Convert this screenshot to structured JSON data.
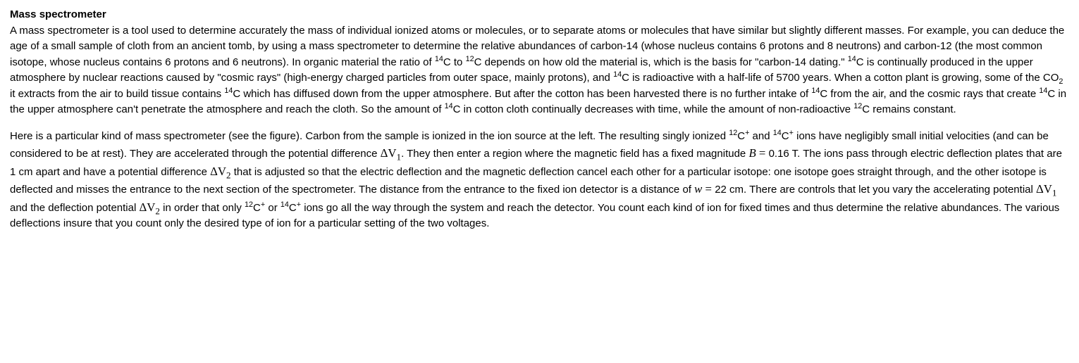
{
  "title": "Mass spectrometer",
  "p1_a": "A mass spectrometer is a tool used to determine accurately the mass of individual ionized atoms or molecules, or to separate atoms or molecules that have similar but slightly different masses. For example, you can deduce the age of a small sample of cloth from an ancient tomb, by using a mass spectrometer to determine the relative abundances of carbon-14 (whose nucleus contains 6 protons and 8 neutrons) and carbon-12 (the most common isotope, whose nucleus contains 6 protons and 6 neutrons). In organic material the ratio of ",
  "c14": "C",
  "p1_b": " to ",
  "c12": "C",
  "p1_c": " depends on how old the material is, which is the basis for \"carbon-14 dating.\" ",
  "p1_d": " is continually produced in the upper atmosphere by nuclear reactions caused by \"cosmic rays\" (high-energy charged particles from outer space, mainly protons), and ",
  "p1_e": " is radioactive with a half-life of 5700 years. When a cotton plant is growing, some of the CO",
  "p1_f": " it extracts from the air to build tissue contains ",
  "p1_g": " which has diffused down from the upper atmosphere. But after the cotton has been harvested there is no further intake of ",
  "p1_h": " from the air, and the cosmic rays that create ",
  "p1_i": " in the upper atmosphere can't penetrate the atmosphere and reach the cloth. So the amount of ",
  "p1_j": " in cotton cloth continually decreases with time, while the amount of non-radioactive ",
  "p1_k": " remains constant.",
  "sup14": "14",
  "sup12": "12",
  "sub2": "2",
  "subplus": "+",
  "p2_a": "Here is a particular kind of mass spectrometer (see the figure). Carbon from the sample is ionized in the ion source at the left. The resulting singly ionized ",
  "c12p": "C",
  "p2_b": " and ",
  "c14p": "C",
  "p2_c": " ions have negligibly small initial velocities (and can be considered to be at rest). They are accelerated through the potential difference ",
  "dv1": "ΔV",
  "p2_d": ". They then enter a region where the magnetic field has a fixed magnitude ",
  "Beq": "B = ",
  "Bval": "0.16",
  "Bunit": " T. The ions pass through electric deflection plates that are 1 cm apart and have a potential difference ",
  "dv2": "ΔV",
  "p2_e": " that is adjusted so that the electric deflection and the magnetic deflection cancel each other for a particular isotope: one isotope goes straight through, and the other isotope is deflected and misses the entrance to the next section of the spectrometer. The distance from the entrance to the fixed ion detector is a distance of ",
  "weq": "w = ",
  "wval": "22",
  "wunit": " cm. There are controls that let you vary the accelerating potential ",
  "p2_f": " and the deflection potential ",
  "p2_g": " in order that only ",
  "p2_h": " or ",
  "p2_i": " ions go all the way through the system and reach the detector. You count each kind of ion for fixed times and thus determine the relative abundances. The various deflections insure that you count only the desired type of ion for a particular setting of the two voltages.",
  "m1": "1",
  "m2": "2"
}
